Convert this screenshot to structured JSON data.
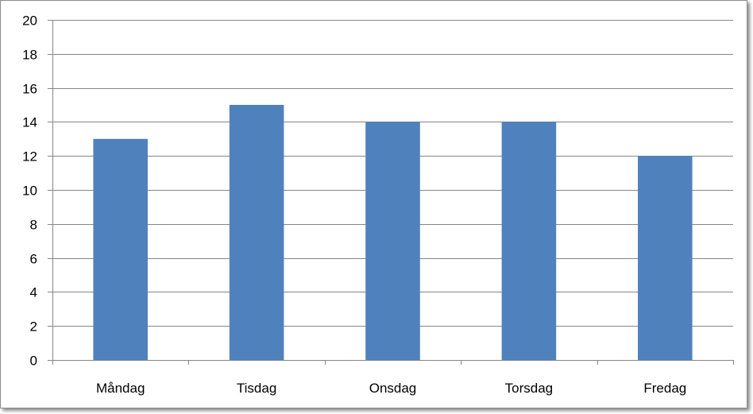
{
  "chart_data": {
    "type": "bar",
    "categories": [
      "Måndag",
      "Tisdag",
      "Onsdag",
      "Torsdag",
      "Fredag"
    ],
    "values": [
      13,
      15,
      14,
      14,
      12
    ],
    "title": "",
    "xlabel": "",
    "ylabel": "",
    "ylim": [
      0,
      20
    ],
    "yticks": [
      "0",
      "2",
      "4",
      "6",
      "8",
      "10",
      "12",
      "14",
      "16",
      "18",
      "20"
    ],
    "grid": true,
    "legend": "none",
    "bar_color": "#4f81bd",
    "grid_color": "#868686",
    "axis_color": "#868686"
  }
}
